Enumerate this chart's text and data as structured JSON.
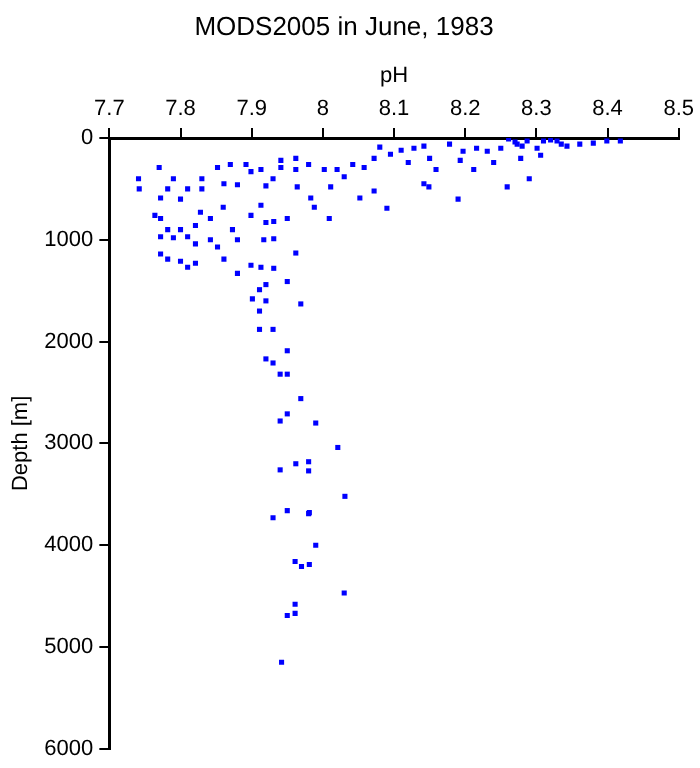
{
  "chart_data": {
    "type": "scatter",
    "title": "MODS2005 in June, 1983",
    "xlabel": "pH",
    "ylabel": "Depth [m]",
    "marker": "square",
    "grid": false,
    "legend": false,
    "xlim": [
      7.7,
      8.5
    ],
    "xticks": [
      7.7,
      7.8,
      7.9,
      8,
      8.1,
      8.2,
      8.3,
      8.4,
      8.5
    ],
    "ylim": [
      6000,
      0
    ],
    "yticks": [
      0,
      1000,
      2000,
      3000,
      4000,
      5000,
      6000
    ],
    "series": [
      {
        "color": "#0000ff",
        "x": [
          7.741,
          7.742,
          7.77,
          7.79,
          7.782,
          7.81,
          7.772,
          7.8,
          7.83,
          7.83,
          7.852,
          7.87,
          7.892,
          7.861,
          7.88,
          7.899,
          7.913,
          7.92,
          7.941,
          7.941,
          7.962,
          7.962,
          7.98,
          7.964,
          7.93,
          8.002,
          8.02,
          8.011,
          8.03,
          8.042,
          8.058,
          8.072,
          8.08,
          8.095,
          8.11,
          8.128,
          8.142,
          8.12,
          8.15,
          8.159,
          8.178,
          8.197,
          8.216,
          8.231,
          8.25,
          8.261,
          8.273,
          8.287,
          8.301,
          8.31,
          8.329,
          8.343,
          8.361,
          8.38,
          8.399,
          8.418,
          8.278,
          8.306,
          8.24,
          8.212,
          8.193,
          8.259,
          8.29,
          8.142,
          8.149,
          8.072,
          8.09,
          8.19,
          8.052,
          8.009,
          7.983,
          7.988,
          7.764,
          7.772,
          7.782,
          7.8,
          7.821,
          7.828,
          7.842,
          7.86,
          7.873,
          7.899,
          7.913,
          7.92,
          7.931,
          7.95,
          7.772,
          7.79,
          7.81,
          7.821,
          7.842,
          7.88,
          7.917,
          7.931,
          7.962,
          7.772,
          7.782,
          7.8,
          7.81,
          7.821,
          7.861,
          7.88,
          7.899,
          7.913,
          7.931,
          7.92,
          7.95,
          7.852,
          7.911,
          7.901,
          7.92,
          7.969,
          7.911,
          7.911,
          7.93,
          7.95,
          7.92,
          7.93,
          7.94,
          7.95,
          7.969,
          7.95,
          7.94,
          7.99,
          8.021,
          7.962,
          7.98,
          7.98,
          7.94,
          8.031,
          7.95,
          7.98,
          7.93,
          7.981,
          7.99,
          7.961,
          7.97,
          7.981,
          8.03,
          7.961,
          7.95,
          7.961,
          7.942,
          8.27,
          8.28,
          8.32,
          8.335
        ],
        "values": [
          400,
          500,
          290,
          400,
          500,
          500,
          590,
          600,
          400,
          500,
          290,
          260,
          260,
          450,
          460,
          330,
          310,
          470,
          220,
          290,
          200,
          310,
          260,
          480,
          400,
          310,
          310,
          480,
          380,
          260,
          290,
          200,
          90,
          160,
          120,
          100,
          80,
          240,
          200,
          310,
          60,
          130,
          100,
          130,
          100,
          10,
          60,
          30,
          100,
          30,
          30,
          80,
          60,
          50,
          30,
          30,
          200,
          170,
          240,
          310,
          220,
          480,
          400,
          450,
          480,
          520,
          690,
          600,
          590,
          790,
          590,
          680,
          760,
          790,
          900,
          900,
          860,
          730,
          790,
          680,
          900,
          760,
          660,
          830,
          820,
          790,
          970,
          980,
          970,
          1040,
          1000,
          1000,
          1000,
          990,
          1130,
          1140,
          1190,
          1210,
          1270,
          1230,
          1190,
          1330,
          1250,
          1270,
          1280,
          1440,
          1410,
          1070,
          1490,
          1580,
          1600,
          1630,
          1700,
          1880,
          1880,
          2090,
          2170,
          2210,
          2320,
          2320,
          2560,
          2710,
          2780,
          2800,
          3040,
          3200,
          3180,
          3270,
          3260,
          3520,
          3660,
          3690,
          3730,
          3680,
          4000,
          4160,
          4210,
          4190,
          4470,
          4580,
          4690,
          4670,
          5150,
          40,
          80,
          20,
          60
        ]
      }
    ]
  }
}
